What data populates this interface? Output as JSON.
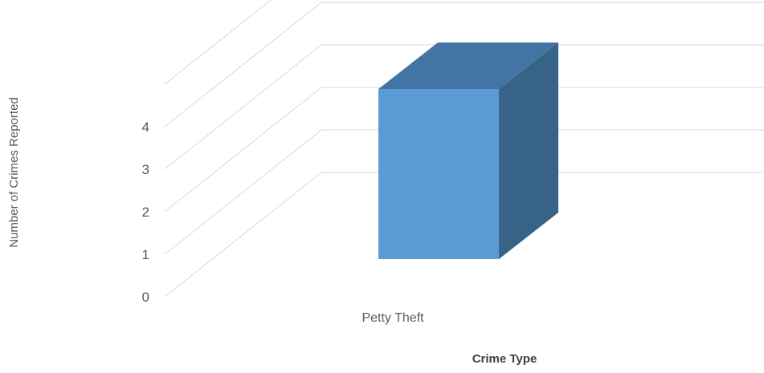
{
  "chart_data": {
    "type": "bar",
    "style": "3d-column",
    "categories": [
      "Petty Theft"
    ],
    "series": [
      {
        "values": [
          4
        ]
      }
    ],
    "xlabel": "Crime Type",
    "ylabel": "Number of Crimes Reported",
    "ylim": [
      0,
      4
    ],
    "yticks": [
      "0",
      "1",
      "2",
      "3",
      "4"
    ],
    "grid": true,
    "legend": "none",
    "colors": {
      "bar_front": "#5b9bd5",
      "bar_top": "#4275a3",
      "bar_side": "#376387",
      "grid": "#d9d9d9",
      "text": "#595959"
    }
  }
}
